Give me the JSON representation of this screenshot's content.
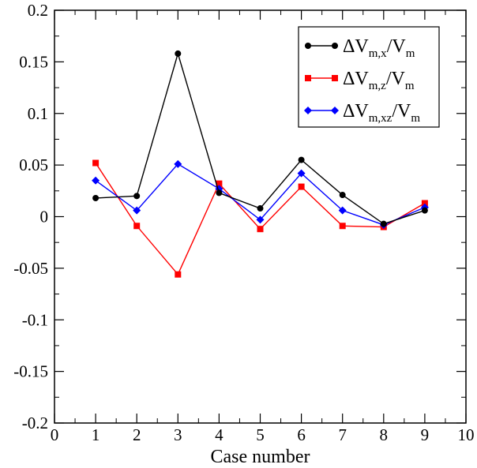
{
  "chart_data": {
    "type": "line",
    "xlabel": "Case number",
    "ylabel": "",
    "title": "",
    "xlim": [
      0,
      10
    ],
    "ylim": [
      -0.2,
      0.2
    ],
    "xticks": [
      0,
      1,
      2,
      3,
      4,
      5,
      6,
      7,
      8,
      9,
      10
    ],
    "yticks": [
      -0.2,
      -0.15,
      -0.1,
      -0.05,
      0,
      0.05,
      0.1,
      0.15,
      0.2
    ],
    "xtick_labels": [
      "0",
      "1",
      "2",
      "3",
      "4",
      "5",
      "6",
      "7",
      "8",
      "9",
      "10"
    ],
    "ytick_labels": [
      "-0.2",
      "-0.15",
      "-0.1",
      "-0.05",
      "0",
      "0.05",
      "0.1",
      "0.15",
      "0.2"
    ],
    "grid": false,
    "legend_position": "top-right",
    "x": [
      1,
      2,
      3,
      4,
      5,
      6,
      7,
      8,
      9
    ],
    "series": [
      {
        "name": "ΔVm,x/Vm",
        "legend": {
          "base": "ΔV",
          "sub": "m,x",
          "mid": "/V",
          "sub2": "m"
        },
        "color": "#000000",
        "marker": "circle",
        "values": [
          0.018,
          0.02,
          0.158,
          0.023,
          0.008,
          0.055,
          0.021,
          -0.007,
          0.006
        ]
      },
      {
        "name": "ΔVm,z/Vm",
        "legend": {
          "base": "ΔV",
          "sub": "m,z",
          "mid": "/V",
          "sub2": "m"
        },
        "color": "#ff0000",
        "marker": "square",
        "values": [
          0.052,
          -0.009,
          -0.056,
          0.032,
          -0.012,
          0.029,
          -0.009,
          -0.01,
          0.013
        ]
      },
      {
        "name": "ΔVm,xz/Vm",
        "legend": {
          "base": "ΔV",
          "sub": "m,xz",
          "mid": "/V",
          "sub2": "m"
        },
        "color": "#0000ff",
        "marker": "diamond",
        "values": [
          0.035,
          0.006,
          0.051,
          0.027,
          -0.003,
          0.042,
          0.006,
          -0.008,
          0.009
        ]
      }
    ]
  }
}
